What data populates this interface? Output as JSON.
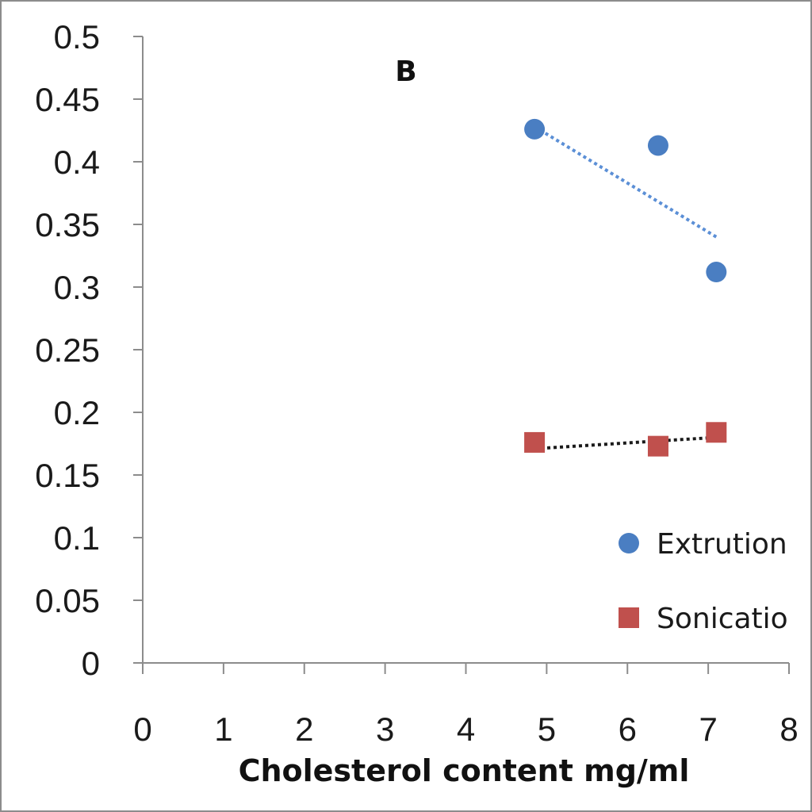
{
  "chart_data": {
    "type": "scatter",
    "title": "",
    "panel_label": "B",
    "xlabel": "Cholesterol content mg/ml",
    "ylabel": "",
    "xlim": [
      0,
      8
    ],
    "ylim": [
      0,
      0.5
    ],
    "x_ticks": [
      "0",
      "1",
      "2",
      "3",
      "4",
      "5",
      "6",
      "7",
      "8"
    ],
    "y_ticks": [
      "0",
      "0.05",
      "0.1",
      "0.15",
      "0.2",
      "0.25",
      "0.3",
      "0.35",
      "0.4",
      "0.45",
      "0.5"
    ],
    "grid": false,
    "legend_position": "right",
    "series": [
      {
        "name": "Extrution",
        "marker": "circle",
        "color": "#4a7ec2",
        "trendline_color": "#5b8fd6",
        "x": [
          4.85,
          6.38,
          7.1
        ],
        "y": [
          0.426,
          0.413,
          0.312
        ],
        "trendline": [
          [
            4.85,
            0.428
          ],
          [
            7.1,
            0.34
          ]
        ]
      },
      {
        "name": "Sonicatio",
        "marker": "square",
        "color": "#c0504d",
        "trendline_color": "#1a1a1a",
        "x": [
          4.85,
          6.38,
          7.1
        ],
        "y": [
          0.176,
          0.173,
          0.184
        ],
        "trendline": [
          [
            4.85,
            0.171
          ],
          [
            7.1,
            0.18
          ]
        ]
      }
    ]
  }
}
